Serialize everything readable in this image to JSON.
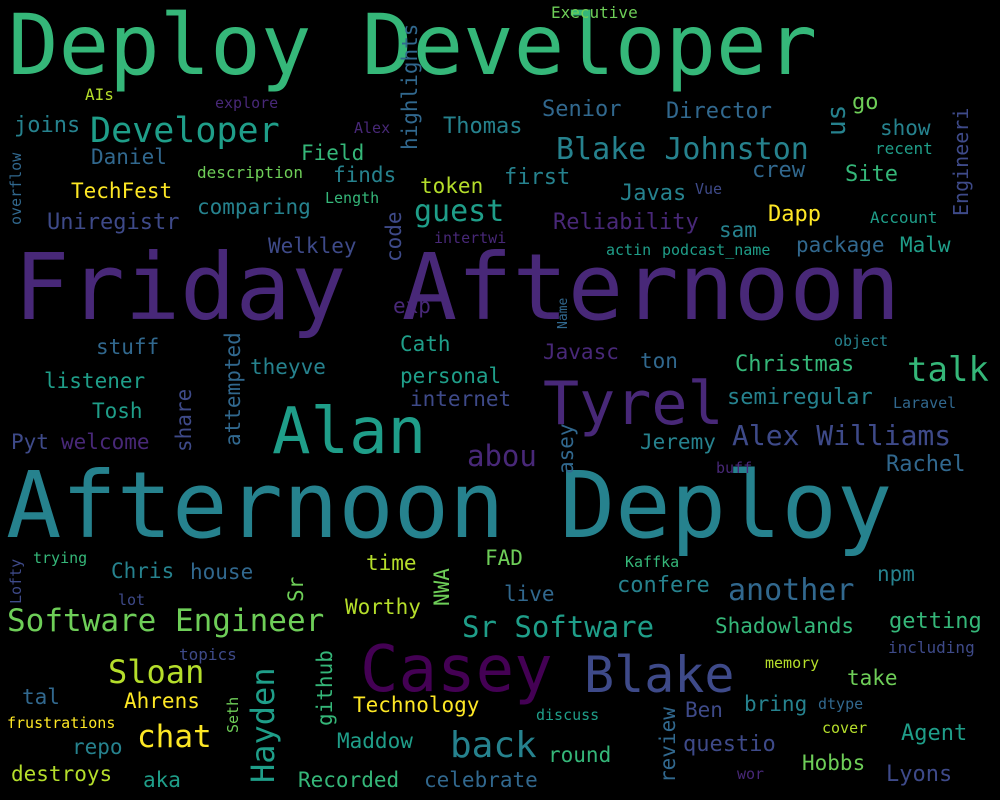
{
  "palette": {
    "background": "#000000",
    "lime": "#b5de2b",
    "yellow": "#fde725",
    "light_green": "#6ece58",
    "green": "#35b779",
    "teal_green": "#1f9e89",
    "teal": "#26828e",
    "blue_teal": "#31688e",
    "blue": "#3e4a89",
    "indigo": "#482878",
    "purple": "#440154"
  },
  "words": [
    {
      "text": "Deploy Developer",
      "color": "#35b779",
      "rot": false
    },
    {
      "text": "Friday Afternoon",
      "color": "#482878",
      "rot": false
    },
    {
      "text": "Afternoon Deploy",
      "color": "#26828e",
      "rot": false
    },
    {
      "text": "Alan",
      "color": "#1f9e89",
      "rot": false
    },
    {
      "text": "Casey",
      "color": "#440154",
      "rot": false
    },
    {
      "text": "Tyrel",
      "color": "#482878",
      "rot": false
    },
    {
      "text": "Blake",
      "color": "#3e4a89",
      "rot": false
    },
    {
      "text": "Developer",
      "color": "#1f9e89",
      "rot": false
    },
    {
      "text": "Blake Johnston",
      "color": "#26828e",
      "rot": false
    },
    {
      "text": "Alex Williams",
      "color": "#3e4a89",
      "rot": false
    },
    {
      "text": "Software Engineer",
      "color": "#6ece58",
      "rot": false
    },
    {
      "text": "Sr Software",
      "color": "#1f9e89",
      "rot": false
    },
    {
      "text": "talk",
      "color": "#35b779",
      "rot": false
    },
    {
      "text": "guest",
      "color": "#1f9e89",
      "rot": false
    },
    {
      "text": "back",
      "color": "#26828e",
      "rot": false
    },
    {
      "text": "chat",
      "color": "#fde725",
      "rot": false
    },
    {
      "text": "Sloan",
      "color": "#b5de2b",
      "rot": false
    },
    {
      "text": "another",
      "color": "#31688e",
      "rot": false
    },
    {
      "text": "abou",
      "color": "#482878",
      "rot": false
    },
    {
      "text": "Hayden",
      "color": "#1f9e89",
      "rot": true
    },
    {
      "text": "Executive",
      "color": "#6ece58",
      "rot": false
    },
    {
      "text": "AIs",
      "color": "#b5de2b",
      "rot": false
    },
    {
      "text": "explore",
      "color": "#482878",
      "rot": false
    },
    {
      "text": "Alex",
      "color": "#482878",
      "rot": false
    },
    {
      "text": "highlights",
      "color": "#31688e",
      "rot": true
    },
    {
      "text": "Senior",
      "color": "#31688e",
      "rot": false
    },
    {
      "text": "Director",
      "color": "#31688e",
      "rot": false
    },
    {
      "text": "go",
      "color": "#6ece58",
      "rot": false
    },
    {
      "text": "us",
      "color": "#26828e",
      "rot": true
    },
    {
      "text": "Engineeri",
      "color": "#3e4a89",
      "rot": true
    },
    {
      "text": "joins",
      "color": "#26828e",
      "rot": false
    },
    {
      "text": "Thomas",
      "color": "#26828e",
      "rot": false
    },
    {
      "text": "show",
      "color": "#26828e",
      "rot": false
    },
    {
      "text": "recent",
      "color": "#1f9e89",
      "rot": false
    },
    {
      "text": "overflow",
      "color": "#31688e",
      "rot": true
    },
    {
      "text": "Daniel",
      "color": "#31688e",
      "rot": false
    },
    {
      "text": "Field",
      "color": "#35b779",
      "rot": false
    },
    {
      "text": "crew",
      "color": "#31688e",
      "rot": false
    },
    {
      "text": "description",
      "color": "#6ece58",
      "rot": false
    },
    {
      "text": "finds",
      "color": "#26828e",
      "rot": false
    },
    {
      "text": "Site",
      "color": "#35b779",
      "rot": false
    },
    {
      "text": "TechFest",
      "color": "#fde725",
      "rot": false
    },
    {
      "text": "token",
      "color": "#b5de2b",
      "rot": false
    },
    {
      "text": "first",
      "color": "#26828e",
      "rot": false
    },
    {
      "text": "Vue",
      "color": "#3e4a89",
      "rot": false
    },
    {
      "text": "Length",
      "color": "#35b779",
      "rot": false
    },
    {
      "text": "Javas",
      "color": "#26828e",
      "rot": false
    },
    {
      "text": "comparing",
      "color": "#26828e",
      "rot": false
    },
    {
      "text": "Dapp",
      "color": "#fde725",
      "rot": false
    },
    {
      "text": "Account",
      "color": "#1f9e89",
      "rot": false
    },
    {
      "text": "Uniregistr",
      "color": "#3e4a89",
      "rot": false
    },
    {
      "text": "Reliability",
      "color": "#482878",
      "rot": false
    },
    {
      "text": "sam",
      "color": "#26828e",
      "rot": false
    },
    {
      "text": "code",
      "color": "#3e4a89",
      "rot": true
    },
    {
      "text": "intertwi",
      "color": "#482878",
      "rot": false
    },
    {
      "text": "actin",
      "color": "#1f9e89",
      "rot": false
    },
    {
      "text": "podcast_name",
      "color": "#1f9e89",
      "rot": false
    },
    {
      "text": "package",
      "color": "#31688e",
      "rot": false
    },
    {
      "text": "Malw",
      "color": "#1f9e89",
      "rot": false
    },
    {
      "text": "Welkley",
      "color": "#3e4a89",
      "rot": false
    },
    {
      "text": "exp",
      "color": "#482878",
      "rot": false
    },
    {
      "text": "Name",
      "color": "#31688e",
      "rot": true
    },
    {
      "text": "object",
      "color": "#26828e",
      "rot": false
    },
    {
      "text": "stuff",
      "color": "#31688e",
      "rot": false
    },
    {
      "text": "Cath",
      "color": "#1f9e89",
      "rot": false
    },
    {
      "text": "Javasc",
      "color": "#482878",
      "rot": false
    },
    {
      "text": "attempted",
      "color": "#31688e",
      "rot": true
    },
    {
      "text": "theyve",
      "color": "#26828e",
      "rot": false
    },
    {
      "text": "ton",
      "color": "#31688e",
      "rot": false
    },
    {
      "text": "Christmas",
      "color": "#35b779",
      "rot": false
    },
    {
      "text": "listener",
      "color": "#1f9e89",
      "rot": false
    },
    {
      "text": "personal",
      "color": "#1f9e89",
      "rot": false
    },
    {
      "text": "semiregular",
      "color": "#26828e",
      "rot": false
    },
    {
      "text": "Laravel",
      "color": "#31688e",
      "rot": false
    },
    {
      "text": "Tosh",
      "color": "#1f9e89",
      "rot": false
    },
    {
      "text": "share",
      "color": "#3e4a89",
      "rot": true
    },
    {
      "text": "internet",
      "color": "#3e4a89",
      "rot": false
    },
    {
      "text": "Pyt",
      "color": "#3e4a89",
      "rot": false
    },
    {
      "text": "welcome",
      "color": "#482878",
      "rot": false
    },
    {
      "text": "Jeremy",
      "color": "#26828e",
      "rot": false
    },
    {
      "text": "asey",
      "color": "#31688e",
      "rot": true
    },
    {
      "text": "Rachel",
      "color": "#31688e",
      "rot": false
    },
    {
      "text": "buff",
      "color": "#482878",
      "rot": false
    },
    {
      "text": "Lofty",
      "color": "#3e4a89",
      "rot": true
    },
    {
      "text": "trying",
      "color": "#35b779",
      "rot": false
    },
    {
      "text": "Chris",
      "color": "#26828e",
      "rot": false
    },
    {
      "text": "house",
      "color": "#31688e",
      "rot": false
    },
    {
      "text": "time",
      "color": "#b5de2b",
      "rot": false
    },
    {
      "text": "FAD",
      "color": "#6ece58",
      "rot": false
    },
    {
      "text": "NWA",
      "color": "#6ece58",
      "rot": true
    },
    {
      "text": "Kaffka",
      "color": "#35b779",
      "rot": false
    },
    {
      "text": "Sr",
      "color": "#6ece58",
      "rot": true
    },
    {
      "text": "live",
      "color": "#31688e",
      "rot": false
    },
    {
      "text": "confere",
      "color": "#26828e",
      "rot": false
    },
    {
      "text": "npm",
      "color": "#26828e",
      "rot": false
    },
    {
      "text": "lot",
      "color": "#3e4a89",
      "rot": false
    },
    {
      "text": "Worthy",
      "color": "#b5de2b",
      "rot": false
    },
    {
      "text": "Shadowlands",
      "color": "#35b779",
      "rot": false
    },
    {
      "text": "getting",
      "color": "#35b779",
      "rot": false
    },
    {
      "text": "including",
      "color": "#3e4a89",
      "rot": false
    },
    {
      "text": "topics",
      "color": "#3e4a89",
      "rot": false
    },
    {
      "text": "github",
      "color": "#35b779",
      "rot": true
    },
    {
      "text": "memory",
      "color": "#b5de2b",
      "rot": false
    },
    {
      "text": "take",
      "color": "#6ece58",
      "rot": false
    },
    {
      "text": "tal",
      "color": "#31688e",
      "rot": false
    },
    {
      "text": "Ahrens",
      "color": "#fde725",
      "rot": false
    },
    {
      "text": "Technology",
      "color": "#fde725",
      "rot": false
    },
    {
      "text": "bring",
      "color": "#26828e",
      "rot": false
    },
    {
      "text": "dtype",
      "color": "#31688e",
      "rot": false
    },
    {
      "text": "Ben",
      "color": "#3e4a89",
      "rot": false
    },
    {
      "text": "frustrations",
      "color": "#fde725",
      "rot": false
    },
    {
      "text": "Seth",
      "color": "#6ece58",
      "rot": true
    },
    {
      "text": "discuss",
      "color": "#1f9e89",
      "rot": false
    },
    {
      "text": "review",
      "color": "#31688e",
      "rot": true
    },
    {
      "text": "cover",
      "color": "#b5de2b",
      "rot": false
    },
    {
      "text": "repo",
      "color": "#26828e",
      "rot": false
    },
    {
      "text": "Maddow",
      "color": "#1f9e89",
      "rot": false
    },
    {
      "text": "questio",
      "color": "#3e4a89",
      "rot": false
    },
    {
      "text": "Agent",
      "color": "#1f9e89",
      "rot": false
    },
    {
      "text": "round",
      "color": "#35b779",
      "rot": false
    },
    {
      "text": "Hobbs",
      "color": "#6ece58",
      "rot": false
    },
    {
      "text": "destroys",
      "color": "#b5de2b",
      "rot": false
    },
    {
      "text": "aka",
      "color": "#1f9e89",
      "rot": false
    },
    {
      "text": "Recorded",
      "color": "#35b779",
      "rot": false
    },
    {
      "text": "celebrate",
      "color": "#31688e",
      "rot": false
    },
    {
      "text": "wor",
      "color": "#482878",
      "rot": false
    },
    {
      "text": "Lyons",
      "color": "#3e4a89",
      "rot": false
    }
  ]
}
